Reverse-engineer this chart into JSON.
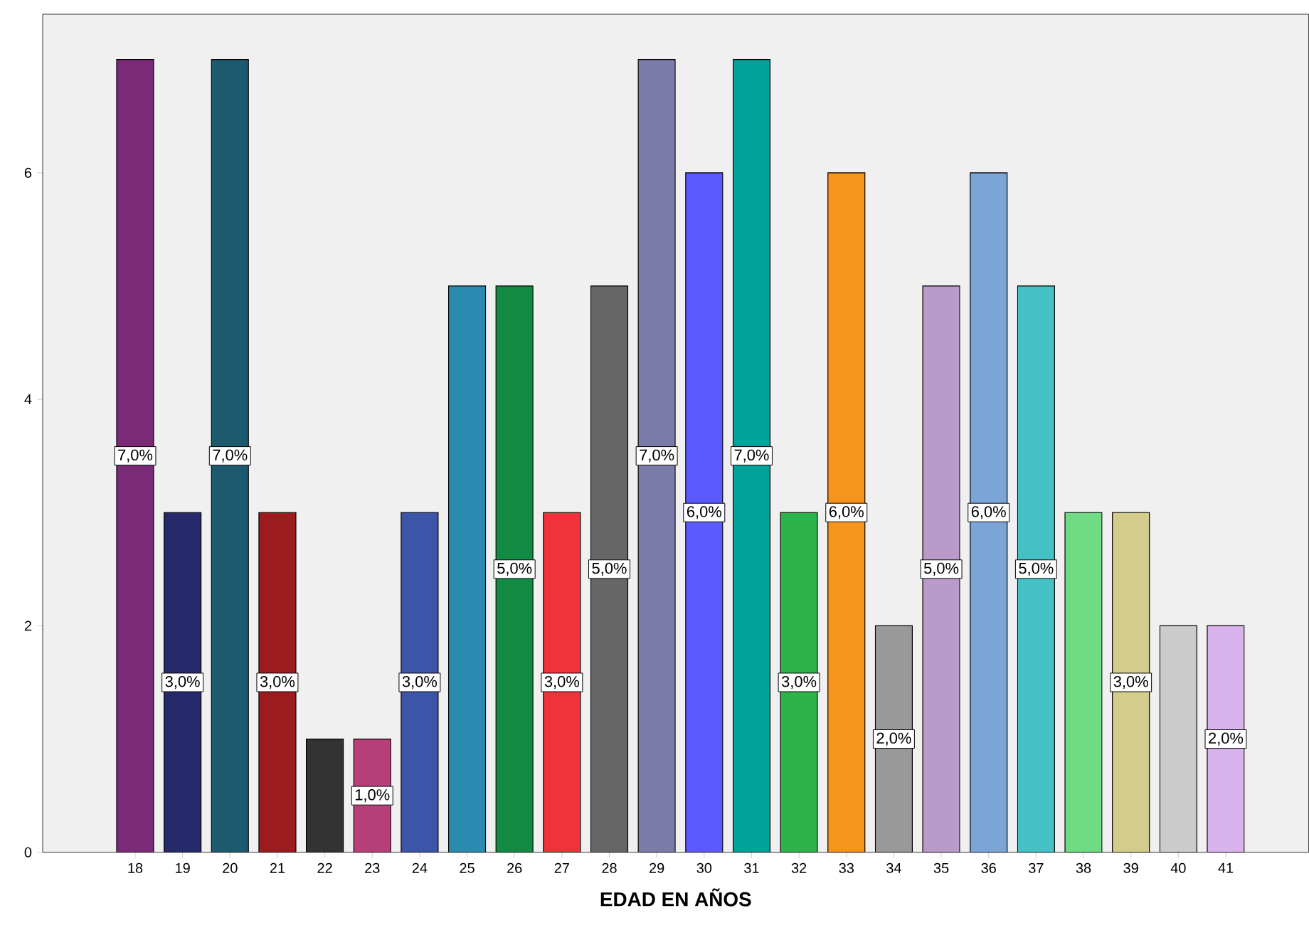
{
  "chart_data": {
    "type": "bar",
    "xlabel": "EDAD EN AÑOS",
    "categories": [
      "18",
      "19",
      "20",
      "21",
      "22",
      "23",
      "24",
      "25",
      "26",
      "27",
      "28",
      "29",
      "30",
      "31",
      "32",
      "33",
      "34",
      "35",
      "36",
      "37",
      "38",
      "39",
      "40",
      "41"
    ],
    "values": [
      7,
      3,
      7,
      3,
      1,
      1,
      3,
      5,
      5,
      3,
      5,
      7,
      6,
      7,
      3,
      6,
      2,
      5,
      6,
      5,
      3,
      3,
      2,
      2
    ],
    "value_labels": [
      "7,0%",
      "3,0%",
      "7,0%",
      "3,0%",
      null,
      "1,0%",
      "3,0%",
      null,
      "5,0%",
      "3,0%",
      "5,0%",
      "7,0%",
      "6,0%",
      "7,0%",
      "3,0%",
      "6,0%",
      "2,0%",
      "5,0%",
      "6,0%",
      "5,0%",
      null,
      "3,0%",
      null,
      "2,0%"
    ],
    "colors": [
      "#7b2a78",
      "#262a6b",
      "#1d5a6e",
      "#9b1b1f",
      "#333333",
      "#b8407a",
      "#3d55a8",
      "#2a8ab0",
      "#138a44",
      "#f0333a",
      "#666666",
      "#7b7ba8",
      "#5a5aff",
      "#00a39a",
      "#2db34a",
      "#f7941d",
      "#999999",
      "#b99ac9",
      "#7ba5d6",
      "#45c0c4",
      "#6fdb82",
      "#d4cc8c",
      "#cccccc",
      "#d9b3ec"
    ],
    "ylim": [
      0,
      7.4
    ],
    "yticks": [
      0,
      2,
      4,
      6
    ],
    "grid": false
  }
}
